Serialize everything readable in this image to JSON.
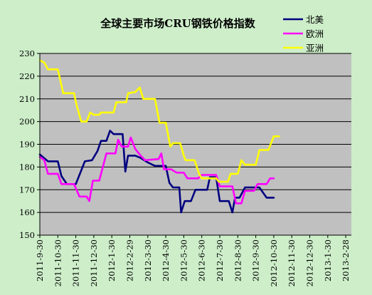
{
  "chart_data": {
    "type": "line",
    "title": "全球主要市场CRU钢铁价格指数",
    "xlabel": "",
    "ylabel": "",
    "ylim": [
      150,
      230
    ],
    "yticks": [
      150,
      160,
      170,
      180,
      190,
      200,
      210,
      220,
      230
    ],
    "grid": "horizontal",
    "legend_position": "top-right",
    "x_tick_labels": [
      "2011-9-30",
      "2011-10-30",
      "2011-11-30",
      "2011-12-30",
      "2012-1-30",
      "2012-2-29",
      "2012-3-30",
      "2012-4-30",
      "2012-5-30",
      "2012-6-30",
      "2012-7-30",
      "2012-8-30",
      "2012-9-30",
      "2012-10-30",
      "2012-11-30",
      "2012-12-30",
      "2013-1-30",
      "2013-2-28"
    ],
    "series": [
      {
        "name": "北美",
        "color": "#000080",
        "points": [
          [
            0,
            185.5
          ],
          [
            0.45,
            182.5
          ],
          [
            1.0,
            182.5
          ],
          [
            1.2,
            176
          ],
          [
            1.5,
            172.5
          ],
          [
            2.0,
            172.5
          ],
          [
            2.5,
            182.5
          ],
          [
            2.9,
            183
          ],
          [
            3.2,
            187
          ],
          [
            3.4,
            191.5
          ],
          [
            3.7,
            191.5
          ],
          [
            3.9,
            196
          ],
          [
            4.1,
            194.5
          ],
          [
            4.6,
            194.5
          ],
          [
            4.75,
            178
          ],
          [
            4.9,
            185
          ],
          [
            5.3,
            185
          ],
          [
            5.6,
            184
          ],
          [
            6.0,
            182
          ],
          [
            6.4,
            180.5
          ],
          [
            7.0,
            180.5
          ],
          [
            7.2,
            173
          ],
          [
            7.4,
            171
          ],
          [
            7.75,
            171
          ],
          [
            7.85,
            160
          ],
          [
            8.05,
            165
          ],
          [
            8.4,
            165
          ],
          [
            8.65,
            170
          ],
          [
            9.3,
            170
          ],
          [
            9.45,
            175.5
          ],
          [
            9.8,
            175.5
          ],
          [
            10.0,
            165
          ],
          [
            10.5,
            165
          ],
          [
            10.7,
            160
          ],
          [
            10.85,
            166.5
          ],
          [
            11.1,
            166.5
          ],
          [
            11.4,
            171
          ],
          [
            12.2,
            171
          ],
          [
            12.6,
            166.5
          ],
          [
            13.0,
            166.5
          ]
        ]
      },
      {
        "name": "欧洲",
        "color": "#ff00ff",
        "points": [
          [
            0,
            184.5
          ],
          [
            0.25,
            183
          ],
          [
            0.45,
            177
          ],
          [
            1.0,
            177
          ],
          [
            1.2,
            172.5
          ],
          [
            1.9,
            172.5
          ],
          [
            2.2,
            167
          ],
          [
            2.6,
            167
          ],
          [
            2.75,
            165
          ],
          [
            2.95,
            174
          ],
          [
            3.3,
            174
          ],
          [
            3.7,
            186
          ],
          [
            4.2,
            186
          ],
          [
            4.35,
            192
          ],
          [
            4.55,
            189
          ],
          [
            4.9,
            189
          ],
          [
            5.05,
            193
          ],
          [
            5.3,
            188
          ],
          [
            5.6,
            185
          ],
          [
            5.85,
            183
          ],
          [
            6.6,
            183.5
          ],
          [
            6.75,
            186
          ],
          [
            6.9,
            179
          ],
          [
            7.3,
            179
          ],
          [
            7.6,
            177.5
          ],
          [
            8.0,
            177.5
          ],
          [
            8.2,
            175
          ],
          [
            8.8,
            175
          ],
          [
            9.0,
            176.5
          ],
          [
            9.8,
            176.5
          ],
          [
            10.0,
            171.5
          ],
          [
            10.7,
            171.5
          ],
          [
            10.9,
            164
          ],
          [
            11.2,
            164
          ],
          [
            11.4,
            169.5
          ],
          [
            11.9,
            169.5
          ],
          [
            12.1,
            172.5
          ],
          [
            12.6,
            172.5
          ],
          [
            12.8,
            175
          ],
          [
            13.0,
            175
          ]
        ]
      },
      {
        "name": "亚洲",
        "color": "#ffff00",
        "points": [
          [
            0,
            227
          ],
          [
            0.25,
            226
          ],
          [
            0.45,
            223
          ],
          [
            1.0,
            223
          ],
          [
            1.1,
            219.5
          ],
          [
            1.3,
            212.5
          ],
          [
            1.9,
            212.5
          ],
          [
            2.05,
            207
          ],
          [
            2.3,
            200
          ],
          [
            2.6,
            200
          ],
          [
            2.8,
            204
          ],
          [
            3.0,
            203
          ],
          [
            3.3,
            203
          ],
          [
            3.4,
            204
          ],
          [
            4.1,
            204
          ],
          [
            4.25,
            208.5
          ],
          [
            4.8,
            208.5
          ],
          [
            4.9,
            212.5
          ],
          [
            5.3,
            213
          ],
          [
            5.55,
            215
          ],
          [
            5.75,
            210
          ],
          [
            6.4,
            210
          ],
          [
            6.65,
            199.5
          ],
          [
            7.0,
            199.5
          ],
          [
            7.25,
            189
          ],
          [
            7.4,
            190.5
          ],
          [
            7.8,
            190.5
          ],
          [
            8.0,
            185
          ],
          [
            8.1,
            183
          ],
          [
            8.6,
            183
          ],
          [
            8.85,
            177
          ],
          [
            9.0,
            175
          ],
          [
            9.8,
            175
          ],
          [
            9.95,
            173.5
          ],
          [
            10.45,
            173.5
          ],
          [
            10.6,
            177
          ],
          [
            11.0,
            177
          ],
          [
            11.2,
            183
          ],
          [
            11.4,
            181
          ],
          [
            12.0,
            181
          ],
          [
            12.2,
            187.5
          ],
          [
            12.7,
            187.5
          ],
          [
            13.0,
            193.5
          ],
          [
            13.3,
            193.5
          ]
        ]
      }
    ]
  }
}
